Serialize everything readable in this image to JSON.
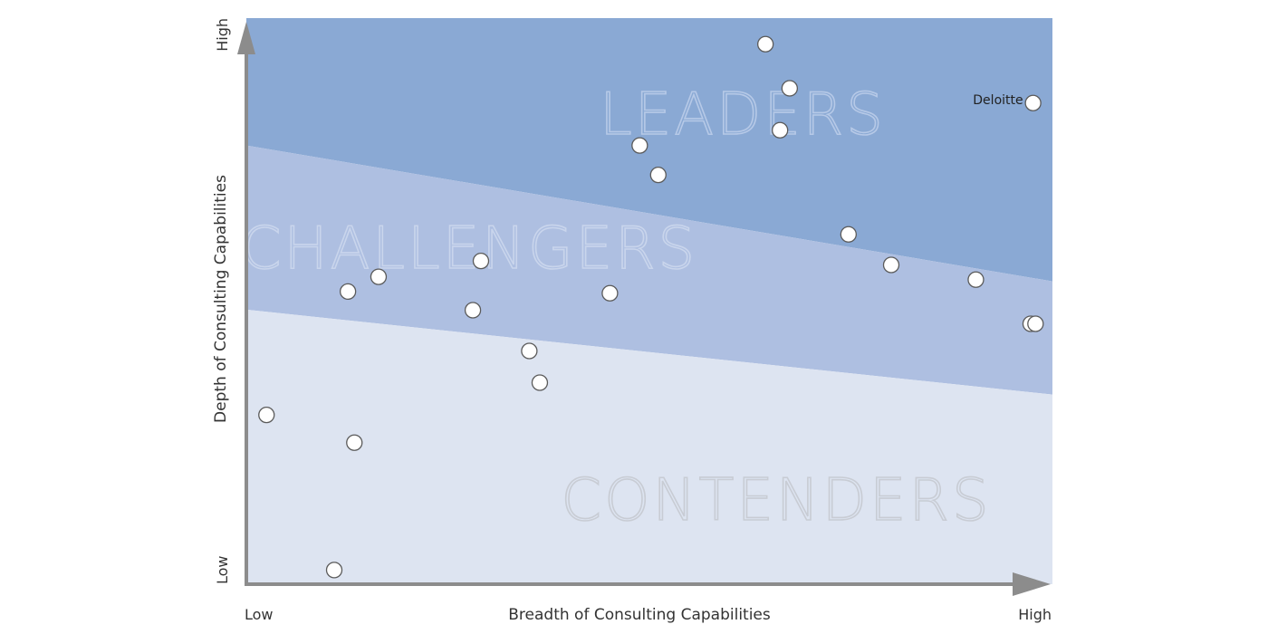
{
  "colors": {
    "leaders": "#8aa9d4",
    "challengers": "#aebfe1",
    "contenders": "#dde4f1",
    "axis": "#8c8c8c",
    "point_fill": "#ffffff",
    "point_stroke": "#5b5b5b"
  },
  "chart_data": {
    "type": "scatter",
    "title": "",
    "xlabel": "Breadth of Consulting Capabilities",
    "ylabel": "Depth of Consulting Capabilities",
    "x_low_label": "Low",
    "x_high_label": "High",
    "y_low_label": "Low",
    "y_high_label": "High",
    "xlim": [
      0,
      100
    ],
    "ylim": [
      0,
      100
    ],
    "grid": false,
    "zones": [
      {
        "name": "LEADERS",
        "boundary_y_at_x0": 77.5,
        "boundary_y_at_x100": 53.5,
        "color_key": "leaders"
      },
      {
        "name": "CHALLENGERS",
        "boundary_y_at_x0": 48.5,
        "boundary_y_at_x100": 33.5,
        "color_key": "challengers"
      },
      {
        "name": "CONTENDERS",
        "boundary_y_at_x0": 0,
        "boundary_y_at_x100": 0,
        "color_key": "contenders"
      }
    ],
    "points": [
      {
        "x": 64.4,
        "y": 95.4,
        "label": ""
      },
      {
        "x": 67.4,
        "y": 87.6,
        "label": ""
      },
      {
        "x": 97.6,
        "y": 85.0,
        "label": "Deloitte"
      },
      {
        "x": 66.2,
        "y": 80.2,
        "label": ""
      },
      {
        "x": 48.8,
        "y": 77.5,
        "label": ""
      },
      {
        "x": 51.1,
        "y": 72.3,
        "label": ""
      },
      {
        "x": 74.7,
        "y": 61.8,
        "label": ""
      },
      {
        "x": 80.0,
        "y": 56.4,
        "label": ""
      },
      {
        "x": 90.5,
        "y": 53.8,
        "label": ""
      },
      {
        "x": 97.3,
        "y": 46.0,
        "label": ""
      },
      {
        "x": 97.9,
        "y": 46.0,
        "label": ""
      },
      {
        "x": 29.1,
        "y": 57.1,
        "label": ""
      },
      {
        "x": 16.4,
        "y": 54.3,
        "label": ""
      },
      {
        "x": 12.6,
        "y": 51.7,
        "label": ""
      },
      {
        "x": 45.1,
        "y": 51.4,
        "label": ""
      },
      {
        "x": 28.1,
        "y": 48.4,
        "label": ""
      },
      {
        "x": 35.1,
        "y": 41.2,
        "label": ""
      },
      {
        "x": 36.4,
        "y": 35.6,
        "label": ""
      },
      {
        "x": 2.5,
        "y": 29.9,
        "label": ""
      },
      {
        "x": 13.4,
        "y": 25.0,
        "label": ""
      },
      {
        "x": 10.9,
        "y": 2.5,
        "label": ""
      }
    ]
  }
}
